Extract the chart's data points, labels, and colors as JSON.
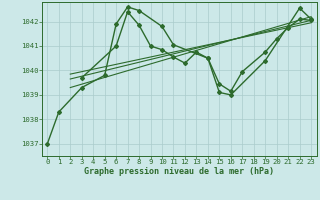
{
  "title": "Graphe pression niveau de la mer (hPa)",
  "background_color": "#cce8e8",
  "grid_color": "#aacccc",
  "line_color": "#2d6b2d",
  "xlim": [
    -0.5,
    23.5
  ],
  "ylim": [
    1036.5,
    1042.8
  ],
  "yticks": [
    1037,
    1038,
    1039,
    1040,
    1041,
    1042
  ],
  "xticks": [
    0,
    1,
    2,
    3,
    4,
    5,
    6,
    7,
    8,
    9,
    10,
    11,
    12,
    13,
    14,
    15,
    16,
    17,
    18,
    19,
    20,
    21,
    22,
    23
  ],
  "line1_x": [
    0,
    1,
    3,
    5,
    6,
    7,
    8,
    10,
    11,
    14,
    15,
    16,
    19,
    22,
    23
  ],
  "line1_y": [
    1037.0,
    1038.3,
    1039.3,
    1039.8,
    1041.9,
    1042.6,
    1042.45,
    1041.8,
    1041.05,
    1040.5,
    1039.1,
    1039.0,
    1040.4,
    1042.55,
    1042.1
  ],
  "line2_x": [
    3,
    6,
    7,
    8,
    9,
    10,
    11,
    12,
    13,
    14,
    15,
    16,
    17,
    19,
    20,
    21,
    22,
    23
  ],
  "line2_y": [
    1039.7,
    1041.0,
    1042.4,
    1041.85,
    1041.0,
    1040.85,
    1040.55,
    1040.3,
    1040.75,
    1040.5,
    1039.45,
    1039.15,
    1039.95,
    1040.75,
    1041.3,
    1041.75,
    1042.1,
    1042.05
  ],
  "trend1_x": [
    2,
    23
  ],
  "trend1_y": [
    1039.3,
    1042.2
  ],
  "trend2_x": [
    2,
    23
  ],
  "trend2_y": [
    1039.65,
    1042.05
  ],
  "trend3_x": [
    2,
    23
  ],
  "trend3_y": [
    1039.85,
    1041.95
  ]
}
